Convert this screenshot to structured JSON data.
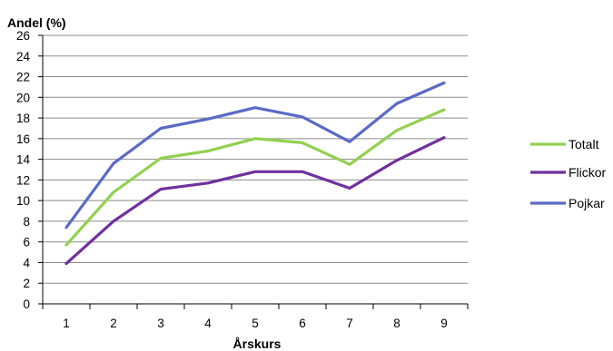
{
  "chart_data": {
    "type": "line",
    "title": "",
    "ylabel": "Andel (%)",
    "xlabel": "Årskurs",
    "categories": [
      "1",
      "2",
      "3",
      "4",
      "5",
      "6",
      "7",
      "8",
      "9"
    ],
    "ylim": [
      0,
      26
    ],
    "yticks": [
      "0",
      "2",
      "4",
      "6",
      "8",
      "10",
      "12",
      "14",
      "16",
      "18",
      "20",
      "22",
      "24",
      "26"
    ],
    "grid": true,
    "legend": "right",
    "series": [
      {
        "name": "Totalt",
        "color": "#92d050",
        "values": [
          5.7,
          10.8,
          14.1,
          14.8,
          16.0,
          15.6,
          13.5,
          16.8,
          18.8
        ]
      },
      {
        "name": "Flickor",
        "color": "#7030a0",
        "values": [
          3.9,
          8.0,
          11.1,
          11.7,
          12.8,
          12.8,
          11.2,
          13.9,
          16.1
        ]
      },
      {
        "name": "Pojkar",
        "color": "#5b6ac7",
        "values": [
          7.4,
          13.6,
          17.0,
          17.9,
          19.0,
          18.1,
          15.7,
          19.4,
          21.4
        ]
      }
    ]
  }
}
